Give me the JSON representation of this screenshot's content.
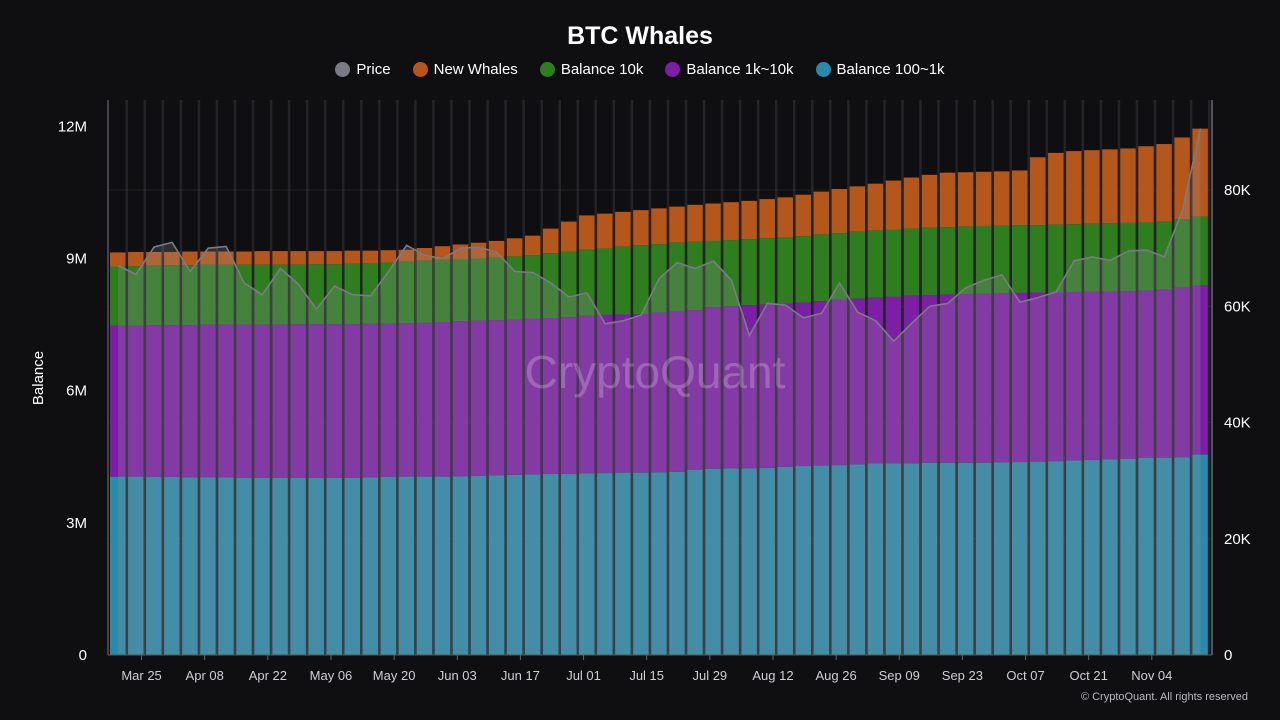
{
  "chart_data": {
    "type": "bar",
    "title": "BTC Whales",
    "ylabel": "Balance",
    "ylim": [
      0,
      12.6
    ],
    "y2lim": [
      0,
      95.5
    ],
    "stacked": true,
    "grid": true,
    "legend_position": "top",
    "watermark": "CryptoQuant",
    "footer": "© CryptoQuant. All rights reserved",
    "y_ticks": [
      {
        "v": 0,
        "label": "0"
      },
      {
        "v": 3,
        "label": "3M"
      },
      {
        "v": 6,
        "label": "6M"
      },
      {
        "v": 9,
        "label": "9M"
      },
      {
        "v": 12,
        "label": "12M"
      }
    ],
    "y2_ticks": [
      {
        "v": 0,
        "label": "0"
      },
      {
        "v": 20,
        "label": "20K"
      },
      {
        "v": 40,
        "label": "40K"
      },
      {
        "v": 60,
        "label": "60K"
      },
      {
        "v": 80,
        "label": "80K"
      }
    ],
    "x_ticks": [
      "Mar 25",
      "Apr 08",
      "Apr 22",
      "May 06",
      "May 20",
      "Jun 03",
      "Jun 17",
      "Jul 01",
      "Jul 15",
      "Jul 29",
      "Aug 12",
      "Aug 26",
      "Sep 09",
      "Sep 23",
      "Oct 07",
      "Oct 21",
      "Nov 04"
    ],
    "x": [
      "Mar 18",
      "Mar 22",
      "Mar 26",
      "Mar 30",
      "Apr 03",
      "Apr 07",
      "Apr 11",
      "Apr 15",
      "Apr 19",
      "Apr 23",
      "Apr 27",
      "May 01",
      "May 05",
      "May 09",
      "May 13",
      "May 17",
      "May 21",
      "May 25",
      "May 29",
      "Jun 02",
      "Jun 06",
      "Jun 10",
      "Jun 14",
      "Jun 18",
      "Jun 22",
      "Jun 26",
      "Jun 30",
      "Jul 04",
      "Jul 08",
      "Jul 12",
      "Jul 16",
      "Jul 20",
      "Jul 24",
      "Jul 28",
      "Aug 01",
      "Aug 05",
      "Aug 09",
      "Aug 13",
      "Aug 17",
      "Aug 21",
      "Aug 25",
      "Aug 29",
      "Sep 02",
      "Sep 06",
      "Sep 10",
      "Sep 14",
      "Sep 18",
      "Sep 22",
      "Sep 26",
      "Sep 30",
      "Oct 04",
      "Oct 08",
      "Oct 12",
      "Oct 16",
      "Oct 20",
      "Oct 24",
      "Oct 28",
      "Nov 01",
      "Nov 05",
      "Nov 09",
      "Nov 13"
    ],
    "series": [
      {
        "name": "Balance 100~1k",
        "color": "#2b8aa8",
        "axis": "left",
        "values": [
          4.05,
          4.05,
          4.04,
          4.04,
          4.03,
          4.03,
          4.03,
          4.02,
          4.02,
          4.02,
          4.02,
          4.02,
          4.02,
          4.02,
          4.03,
          4.04,
          4.05,
          4.05,
          4.05,
          4.06,
          4.07,
          4.08,
          4.09,
          4.1,
          4.11,
          4.11,
          4.12,
          4.13,
          4.14,
          4.14,
          4.15,
          4.16,
          4.2,
          4.23,
          4.24,
          4.24,
          4.25,
          4.27,
          4.29,
          4.3,
          4.31,
          4.33,
          4.35,
          4.35,
          4.35,
          4.36,
          4.36,
          4.36,
          4.36,
          4.37,
          4.38,
          4.39,
          4.4,
          4.42,
          4.43,
          4.44,
          4.45,
          4.48,
          4.48,
          4.49,
          4.55
        ]
      },
      {
        "name": "Balance 1k~10k",
        "color": "#7d1fa6",
        "axis": "left",
        "values": [
          3.43,
          3.43,
          3.45,
          3.45,
          3.46,
          3.47,
          3.47,
          3.48,
          3.48,
          3.48,
          3.49,
          3.49,
          3.49,
          3.49,
          3.49,
          3.48,
          3.48,
          3.49,
          3.51,
          3.52,
          3.52,
          3.52,
          3.52,
          3.53,
          3.54,
          3.56,
          3.58,
          3.59,
          3.59,
          3.6,
          3.62,
          3.64,
          3.63,
          3.67,
          3.68,
          3.7,
          3.71,
          3.71,
          3.71,
          3.73,
          3.76,
          3.76,
          3.76,
          3.78,
          3.81,
          3.81,
          3.82,
          3.83,
          3.84,
          3.84,
          3.84,
          3.84,
          3.83,
          3.82,
          3.82,
          3.81,
          3.81,
          3.79,
          3.82,
          3.85,
          3.84
        ]
      },
      {
        "name": "Balance 10k",
        "color": "#2e7d1f",
        "axis": "left",
        "values": [
          1.34,
          1.35,
          1.35,
          1.36,
          1.36,
          1.36,
          1.36,
          1.36,
          1.36,
          1.36,
          1.35,
          1.36,
          1.36,
          1.37,
          1.37,
          1.39,
          1.4,
          1.41,
          1.41,
          1.4,
          1.41,
          1.42,
          1.44,
          1.45,
          1.47,
          1.49,
          1.5,
          1.51,
          1.54,
          1.56,
          1.56,
          1.56,
          1.55,
          1.5,
          1.5,
          1.5,
          1.5,
          1.5,
          1.51,
          1.52,
          1.51,
          1.52,
          1.53,
          1.53,
          1.52,
          1.53,
          1.53,
          1.54,
          1.54,
          1.54,
          1.54,
          1.53,
          1.54,
          1.54,
          1.54,
          1.55,
          1.55,
          1.55,
          1.54,
          1.55,
          1.56
        ]
      },
      {
        "name": "New Whales",
        "color": "#b5561a",
        "axis": "left",
        "values": [
          0.32,
          0.32,
          0.31,
          0.3,
          0.31,
          0.3,
          0.3,
          0.3,
          0.31,
          0.31,
          0.31,
          0.3,
          0.3,
          0.3,
          0.29,
          0.28,
          0.27,
          0.29,
          0.31,
          0.34,
          0.36,
          0.38,
          0.41,
          0.44,
          0.56,
          0.68,
          0.78,
          0.79,
          0.79,
          0.8,
          0.81,
          0.82,
          0.84,
          0.85,
          0.86,
          0.87,
          0.89,
          0.91,
          0.94,
          0.97,
          1.0,
          1.03,
          1.06,
          1.11,
          1.16,
          1.2,
          1.24,
          1.23,
          1.23,
          1.23,
          1.24,
          1.54,
          1.63,
          1.66,
          1.67,
          1.68,
          1.69,
          1.73,
          1.76,
          1.86,
          2.0
        ]
      },
      {
        "name": "Price",
        "color": "#7b7b86",
        "axis": "right",
        "type": "area",
        "values": [
          67.0,
          65.5,
          70.2,
          71.0,
          66.0,
          70.0,
          70.3,
          64.0,
          62.0,
          66.5,
          63.8,
          59.5,
          63.5,
          62.0,
          61.8,
          66.0,
          70.5,
          68.8,
          68.2,
          70.0,
          70.2,
          69.3,
          66.0,
          65.8,
          64.0,
          61.6,
          62.3,
          57.0,
          57.5,
          58.5,
          64.8,
          67.5,
          66.5,
          67.8,
          64.5,
          55.0,
          60.5,
          60.2,
          58.0,
          58.8,
          64.0,
          59.0,
          57.5,
          54.0,
          57.1,
          60.0,
          60.5,
          63.2,
          64.5,
          65.4,
          60.7,
          61.5,
          62.5,
          67.8,
          68.5,
          67.9,
          69.5,
          69.7,
          68.5,
          76.5,
          90.6
        ]
      }
    ],
    "legend": [
      {
        "label": "Price",
        "color": "#7b7b86"
      },
      {
        "label": "New Whales",
        "color": "#b5561a"
      },
      {
        "label": "Balance 10k",
        "color": "#2e7d1f"
      },
      {
        "label": "Balance 1k~10k",
        "color": "#7d1fa6"
      },
      {
        "label": "Balance 100~1k",
        "color": "#2b8aa8"
      }
    ]
  }
}
